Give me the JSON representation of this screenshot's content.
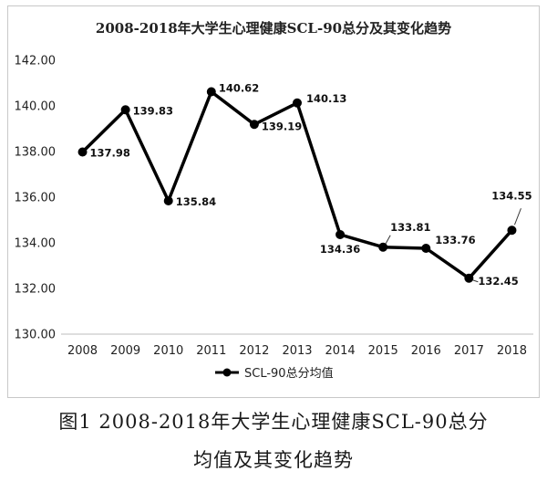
{
  "chart_data": {
    "type": "line",
    "title": "2008-2018年大学生心理健康SCL-90总分及其变化趋势",
    "categories": [
      "2008",
      "2009",
      "2010",
      "2011",
      "2012",
      "2013",
      "2014",
      "2015",
      "2016",
      "2017",
      "2018"
    ],
    "series": [
      {
        "name": "SCL-90总分均值",
        "values": [
          137.98,
          139.83,
          135.84,
          140.62,
          139.19,
          140.13,
          134.36,
          133.81,
          133.76,
          132.45,
          134.55
        ],
        "labels": [
          "137.98",
          "139.83",
          "135.84",
          "140.62",
          "139.19",
          "140.13",
          "134.36",
          "133.81",
          "133.76",
          "132.45",
          "134.55"
        ],
        "color": "#000000"
      }
    ],
    "yticks": [
      "130.00",
      "132.00",
      "134.00",
      "136.00",
      "138.00",
      "140.00",
      "142.00"
    ],
    "ylim": [
      130,
      142
    ],
    "xlabel": "",
    "ylabel": "",
    "legend_position": "bottom",
    "grid": false
  },
  "caption": {
    "line1": "图1  2008-2018年大学生心理健康SCL-90总分",
    "line2": "均值及其变化趋势"
  }
}
